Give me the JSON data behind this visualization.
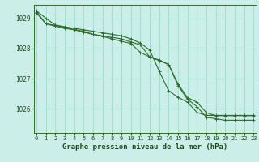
{
  "background_color": "#cceee8",
  "grid_color": "#99ddcc",
  "line_color": "#2d6b2d",
  "xlabel": "Graphe pression niveau de la mer (hPa)",
  "xlabel_fontsize": 6.5,
  "tick_color": "#1a4a1a",
  "ylabel_ticks": [
    1026,
    1027,
    1028,
    1029
  ],
  "xticks": [
    0,
    1,
    2,
    3,
    4,
    5,
    6,
    7,
    8,
    9,
    10,
    11,
    12,
    13,
    14,
    15,
    16,
    17,
    18,
    19,
    20,
    21,
    22,
    23
  ],
  "ylim": [
    1025.2,
    1029.45
  ],
  "xlim": [
    -0.3,
    23.3
  ],
  "series": [
    [
      1029.25,
      1029.0,
      1028.78,
      1028.72,
      1028.67,
      1028.62,
      1028.57,
      1028.52,
      1028.47,
      1028.42,
      1028.32,
      1028.18,
      1027.95,
      1027.25,
      1026.6,
      1026.38,
      1026.22,
      1025.88,
      1025.78,
      1025.78,
      1025.78,
      1025.78,
      1025.78,
      1025.78
    ],
    [
      1029.22,
      1028.82,
      1028.77,
      1028.7,
      1028.63,
      1028.57,
      1028.47,
      1028.42,
      1028.37,
      1028.32,
      1028.22,
      1028.12,
      1027.72,
      1027.62,
      1027.47,
      1026.82,
      1026.37,
      1026.22,
      1025.87,
      1025.77,
      1025.77,
      1025.77,
      1025.77,
      1025.77
    ],
    [
      1029.18,
      1028.82,
      1028.74,
      1028.67,
      1028.62,
      1028.54,
      1028.47,
      1028.4,
      1028.32,
      1028.24,
      1028.17,
      1027.87,
      1027.72,
      1027.6,
      1027.47,
      1026.77,
      1026.32,
      1026.07,
      1025.72,
      1025.67,
      1025.62,
      1025.62,
      1025.62,
      1025.62
    ]
  ]
}
